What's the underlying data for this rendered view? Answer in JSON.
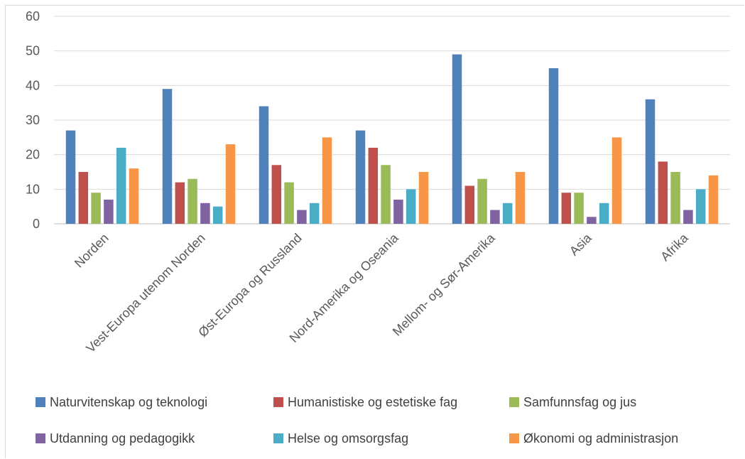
{
  "chart_data": {
    "type": "bar",
    "categories": [
      "Norden",
      "Vest-Europa utenom Norden",
      "Øst-Europa og Russland",
      "Nord-Amerika og Oseania",
      "Mellom- og Sør-Amerika",
      "Asia",
      "Afrika"
    ],
    "series": [
      {
        "name": "Naturvitenskap og teknologi",
        "color": "#4f81bd",
        "values": [
          27,
          39,
          34,
          27,
          49,
          45,
          36
        ]
      },
      {
        "name": "Humanistiske og estetiske fag",
        "color": "#c0504d",
        "values": [
          15,
          12,
          17,
          22,
          11,
          9,
          18
        ]
      },
      {
        "name": "Samfunnsfag og jus",
        "color": "#9bbb59",
        "values": [
          9,
          13,
          12,
          17,
          13,
          9,
          15
        ]
      },
      {
        "name": "Utdanning og pedagogikk",
        "color": "#8064a2",
        "values": [
          7,
          6,
          4,
          7,
          4,
          2,
          4
        ]
      },
      {
        "name": "Helse og omsorgsfag",
        "color": "#4bacc6",
        "values": [
          22,
          5,
          6,
          10,
          6,
          6,
          10
        ]
      },
      {
        "name": "Økonomi og administrasjon",
        "color": "#f79646",
        "values": [
          16,
          23,
          25,
          15,
          15,
          25,
          14
        ]
      }
    ],
    "yticks": [
      "0",
      "10",
      "20",
      "30",
      "40",
      "50",
      "60"
    ],
    "ylim": [
      0,
      60
    ],
    "grid": true,
    "legend_position": "bottom",
    "title": "",
    "xlabel": "",
    "ylabel": ""
  }
}
